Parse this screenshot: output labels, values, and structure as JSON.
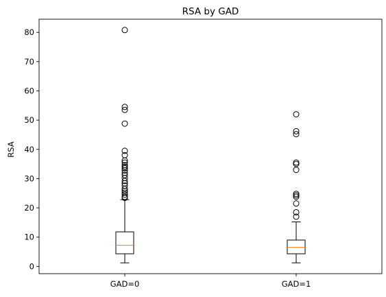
{
  "chart_data": {
    "type": "boxplot",
    "title": "RSA by GAD",
    "xlabel": "",
    "ylabel": "RSA",
    "ylim": [
      -2.5,
      84.5
    ],
    "yticks": [
      0,
      10,
      20,
      30,
      40,
      50,
      60,
      70,
      80
    ],
    "grid": false,
    "colors": {
      "box": "#000000",
      "median": "#ff7f0e",
      "flier": "#000000"
    },
    "categories": [
      "GAD=0",
      "GAD=1"
    ],
    "boxes": [
      {
        "name": "GAD=0",
        "whisker_low": 1.2,
        "q1": 4.3,
        "median": 7.2,
        "q3": 11.8,
        "whisker_high": 22.8,
        "fliers": [
          23.4,
          23.8,
          24.5,
          25.2,
          25.8,
          26.5,
          27.6,
          28.4,
          29.2,
          30.2,
          31.2,
          32.0,
          32.8,
          33.5,
          34.0,
          34.6,
          35.5,
          36.2,
          38.0,
          39.5,
          48.8,
          53.5,
          54.5,
          80.8
        ]
      },
      {
        "name": "GAD=1",
        "whisker_low": 1.2,
        "q1": 4.3,
        "median": 6.5,
        "q3": 9.0,
        "whisker_high": 15.2,
        "fliers": [
          17.0,
          18.5,
          21.5,
          23.8,
          24.3,
          24.8,
          33.0,
          35.0,
          35.5,
          45.2,
          46.2,
          52.0
        ]
      }
    ]
  }
}
